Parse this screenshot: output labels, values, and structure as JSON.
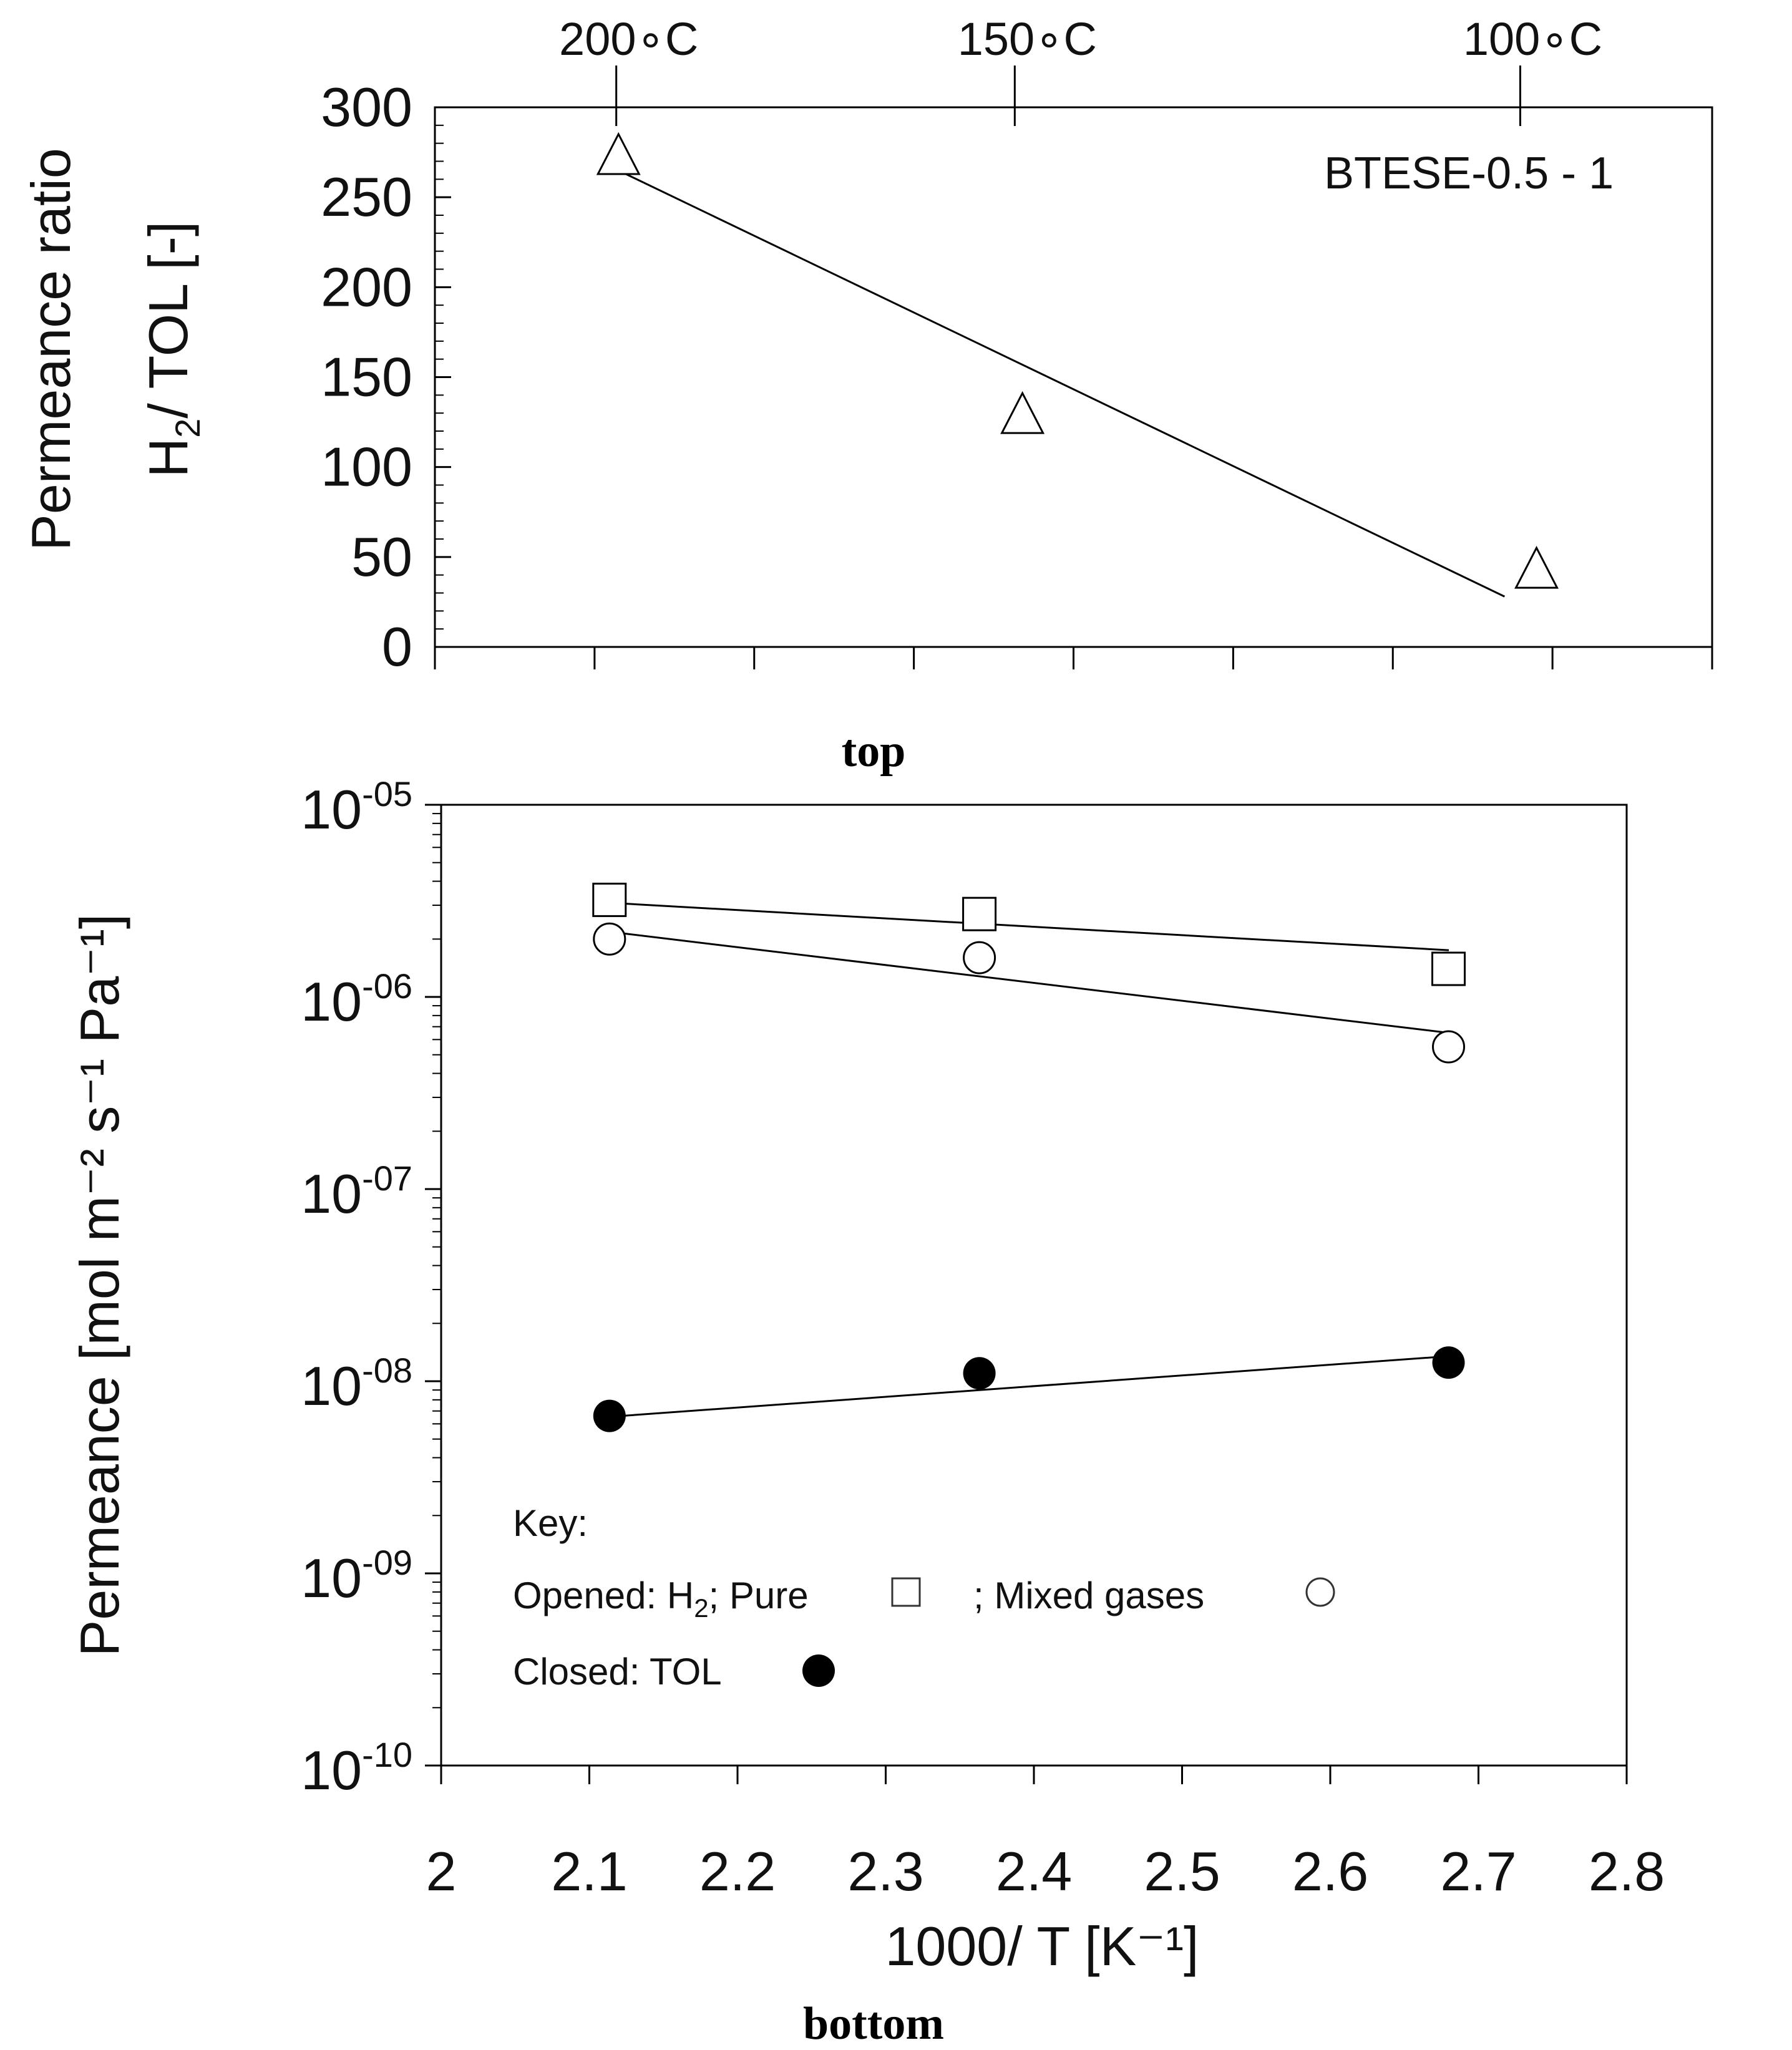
{
  "chart_data": [
    {
      "id": "top",
      "type": "scatter",
      "panel_label": "top",
      "ylabel_line1": "Permeance ratio",
      "ylabel_line2_main": "H",
      "ylabel_line2_sub": "2",
      "ylabel_line2_rest": "/ TOL [-]",
      "ylim": [
        0,
        300
      ],
      "xlim": [
        2.0,
        2.8
      ],
      "y_ticks": [
        0,
        50,
        100,
        150,
        200,
        250,
        300
      ],
      "y_tick_labels": [
        "0",
        "50",
        "100",
        "150",
        "200",
        "250",
        "300"
      ],
      "top_axis_ticks": [
        {
          "x": 2.1136,
          "label": "200∘C"
        },
        {
          "x": 2.3632,
          "label": "150∘C"
        },
        {
          "x": 2.6798,
          "label": "100∘C"
        }
      ],
      "annotation": "BTESE-0.5 - 1",
      "series": [
        {
          "name": "H2/TOL permeance ratio",
          "marker": "open-triangle",
          "x": [
            2.115,
            2.368,
            2.69
          ],
          "y": [
            274,
            130,
            44
          ]
        }
      ],
      "fit_line": {
        "x": [
          2.11,
          2.67
        ],
        "y": [
          267,
          28
        ]
      }
    },
    {
      "id": "bottom",
      "type": "scatter",
      "panel_label": "bottom",
      "ylabel": "Permeance [mol m⁻² s⁻¹ Pa⁻¹]",
      "xlabel": "1000/ T [K⁻¹]",
      "yscale": "log",
      "ylim": [
        1e-10,
        1e-05
      ],
      "xlim": [
        2.0,
        2.8
      ],
      "x_ticks": [
        2.0,
        2.1,
        2.2,
        2.3,
        2.4,
        2.5,
        2.6,
        2.7,
        2.8
      ],
      "x_tick_labels": [
        "2",
        "2.1",
        "2.2",
        "2.3",
        "2.4",
        "2.5",
        "2.6",
        "2.7",
        "2.8"
      ],
      "y_tick_exponents": [
        "-05",
        "-06",
        "-07",
        "-08",
        "-09",
        "-10"
      ],
      "y_tick_base": "10",
      "series": [
        {
          "name": "H2 Pure",
          "marker": "open-square",
          "x": [
            2.1136,
            2.3632,
            2.6798
          ],
          "y": [
            3.2e-06,
            2.7e-06,
            1.4e-06
          ]
        },
        {
          "name": "H2 Mixed gases",
          "marker": "open-circle",
          "x": [
            2.1136,
            2.3632,
            2.6798
          ],
          "y": [
            2e-06,
            1.6e-06,
            5.5e-07
          ]
        },
        {
          "name": "TOL",
          "marker": "filled-circle",
          "x": [
            2.1136,
            2.3632,
            2.6798
          ],
          "y": [
            6.6e-09,
            1.1e-08,
            1.25e-08
          ]
        }
      ],
      "fit_lines": [
        {
          "series": "H2 Pure",
          "x": [
            2.11,
            2.68
          ],
          "y": [
            3.1e-06,
            1.75e-06
          ]
        },
        {
          "series": "H2 Mixed gases",
          "x": [
            2.11,
            2.68
          ],
          "y": [
            2.2e-06,
            6.5e-07
          ]
        },
        {
          "series": "TOL",
          "x": [
            2.11,
            2.68
          ],
          "y": [
            6.5e-09,
            1.35e-08
          ]
        }
      ],
      "legend": {
        "title": "Key:",
        "row1_prefix": "Opened: H",
        "row1_sub": "2",
        "row1_mid": "; Pure",
        "row1_mixed": "; Mixed gases",
        "row2": "Closed: TOL",
        "placement": "bottom-left"
      }
    }
  ]
}
